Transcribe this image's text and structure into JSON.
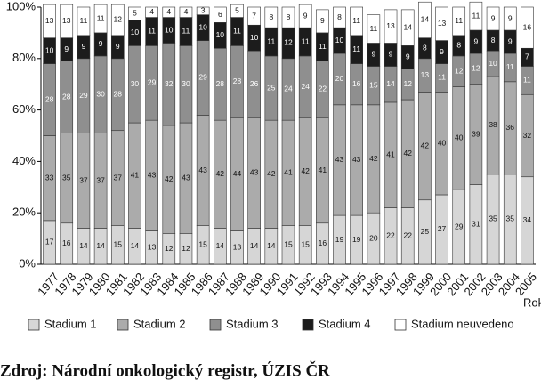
{
  "chart_data": {
    "type": "stacked_bar",
    "x_label": "Rok",
    "source": "Zdroj: Národní onkologický registr, ÚZIS ČR",
    "categories": [
      "1977",
      "1978",
      "1979",
      "1980",
      "1981",
      "1982",
      "1983",
      "1984",
      "1985",
      "1986",
      "1987",
      "1988",
      "1989",
      "1990",
      "1991",
      "1992",
      "1993",
      "1994",
      "1995",
      "1996",
      "1997",
      "1998",
      "1999",
      "2000",
      "2001",
      "2002",
      "2003",
      "2004",
      "2005"
    ],
    "series": [
      {
        "name": "Stadium 1",
        "color": "#d6d6d6",
        "values": [
          17,
          16,
          14,
          14,
          15,
          14,
          13,
          12,
          12,
          15,
          14,
          13,
          14,
          14,
          15,
          15,
          16,
          19,
          19,
          20,
          22,
          22,
          25,
          27,
          29,
          31,
          35,
          35,
          34
        ]
      },
      {
        "name": "Stadium 2",
        "color": "#ababab",
        "values": [
          33,
          35,
          37,
          37,
          37,
          41,
          43,
          42,
          43,
          43,
          42,
          44,
          43,
          42,
          41,
          42,
          41,
          43,
          43,
          42,
          41,
          42,
          42,
          40,
          40,
          39,
          38,
          36,
          32
        ]
      },
      {
        "name": "Stadium 3",
        "color": "#8f8f8f",
        "values": [
          28,
          28,
          29,
          30,
          28,
          30,
          29,
          32,
          30,
          29,
          28,
          28,
          26,
          25,
          24,
          24,
          22,
          20,
          16,
          15,
          14,
          12,
          13,
          11,
          12,
          12,
          10,
          11,
          11
        ]
      },
      {
        "name": "Stadium 4",
        "color": "#1c1c1c",
        "values": [
          10,
          9,
          9,
          9,
          9,
          10,
          11,
          10,
          11,
          10,
          10,
          11,
          10,
          11,
          12,
          11,
          11,
          10,
          11,
          9,
          9,
          9,
          8,
          9,
          8,
          9,
          8,
          9,
          7
        ]
      },
      {
        "name": "Stadium neuvedeno",
        "color": "#ffffff",
        "values": [
          13,
          13,
          11,
          11,
          12,
          5,
          4,
          4,
          4,
          3,
          6,
          5,
          7,
          8,
          8,
          9,
          9,
          8,
          11,
          11,
          13,
          14,
          14,
          13,
          11,
          11,
          9,
          9,
          16
        ]
      }
    ],
    "ylim": [
      0,
      100
    ],
    "yticks": [
      {
        "value": 0,
        "label": "0%"
      },
      {
        "value": 20,
        "label": "20%"
      },
      {
        "value": 40,
        "label": "40%"
      },
      {
        "value": 60,
        "label": "60%"
      },
      {
        "value": 80,
        "label": "80%"
      },
      {
        "value": 100,
        "label": "100%"
      }
    ],
    "grid": false
  }
}
